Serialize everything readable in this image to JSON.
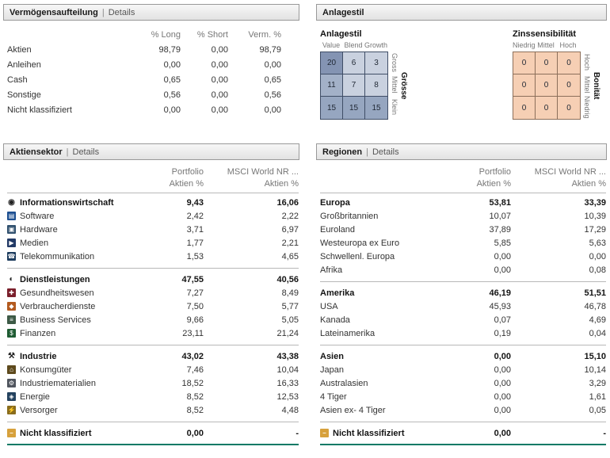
{
  "theme": {
    "accent": "#0a7a66",
    "panel_border": "#999999",
    "muted_text": "#777777",
    "text": "#333333",
    "header_bg_top": "#f7f7f7",
    "header_bg_bottom": "#e2e2e2"
  },
  "ui": {
    "separator": "|"
  },
  "allocation": {
    "title": "Vermögensaufteilung",
    "details_label": "Details",
    "columns": [
      "% Long",
      "% Short",
      "Verm. %"
    ],
    "rows": [
      {
        "label": "Aktien",
        "values": [
          "98,79",
          "0,00",
          "98,79"
        ]
      },
      {
        "label": "Anleihen",
        "values": [
          "0,00",
          "0,00",
          "0,00"
        ]
      },
      {
        "label": "Cash",
        "values": [
          "0,65",
          "0,00",
          "0,65"
        ]
      },
      {
        "label": "Sonstige",
        "values": [
          "0,56",
          "0,00",
          "0,56"
        ]
      },
      {
        "label": "Nicht klassifiziert",
        "values": [
          "0,00",
          "0,00",
          "0,00"
        ]
      }
    ]
  },
  "style_panel": {
    "title": "Anlagestil",
    "equity_box": {
      "title": "Anlagestil",
      "top_labels": [
        "Value",
        "Blend",
        "Growth"
      ],
      "row_labels": [
        "Gross",
        "Mittel",
        "Klein"
      ],
      "axis_title": "Grösse",
      "cells": [
        [
          20,
          6,
          3
        ],
        [
          11,
          7,
          8
        ],
        [
          15,
          15,
          15
        ]
      ],
      "border_color": "#3f4d66",
      "cell_colors": [
        [
          "#8494b3",
          "#c9d1df",
          "#c9d1df"
        ],
        [
          "#a3b1c8",
          "#c9d1df",
          "#c9d1df"
        ],
        [
          "#96a6c0",
          "#96a6c0",
          "#96a6c0"
        ]
      ]
    },
    "bond_box": {
      "title": "Zinssensibilität",
      "top_labels": [
        "Niedrig",
        "Mittel",
        "Hoch"
      ],
      "row_labels": [
        "Hoch",
        "Mittel",
        "Niedrig"
      ],
      "axis_title": "Bonität",
      "cells": [
        [
          0,
          0,
          0
        ],
        [
          0,
          0,
          0
        ],
        [
          0,
          0,
          0
        ]
      ],
      "border_color": "#8c6f5a",
      "cell_colors": [
        [
          "#f6cfb4",
          "#f6cfb4",
          "#f6cfb4"
        ],
        [
          "#f6cfb4",
          "#f6cfb4",
          "#f6cfb4"
        ],
        [
          "#f6cfb4",
          "#f6cfb4",
          "#f6cfb4"
        ]
      ]
    }
  },
  "sectors": {
    "title": "Aktiensektor",
    "details_label": "Details",
    "col_headers": [
      "Portfolio",
      "MSCI World NR ..."
    ],
    "sub_headers": [
      "Aktien %",
      "Aktien %"
    ],
    "groups": [
      {
        "label": "Informationswirtschaft",
        "icon": {
          "name": "information-economy-sector-icon",
          "glyph": "◉",
          "fg": "#222222"
        },
        "values": [
          "9,43",
          "16,06"
        ],
        "rows": [
          {
            "label": "Software",
            "icon": {
              "name": "software-icon",
              "glyph": "▤",
              "bg": "#1d4f91"
            },
            "values": [
              "2,42",
              "2,22"
            ]
          },
          {
            "label": "Hardware",
            "icon": {
              "name": "hardware-icon",
              "glyph": "▣",
              "bg": "#30506e"
            },
            "values": [
              "3,71",
              "6,97"
            ]
          },
          {
            "label": "Medien",
            "icon": {
              "name": "media-icon",
              "glyph": "▶",
              "bg": "#223a66"
            },
            "values": [
              "1,77",
              "2,21"
            ]
          },
          {
            "label": "Telekommunikation",
            "icon": {
              "name": "telecom-icon",
              "glyph": "☎",
              "bg": "#1d3c5e"
            },
            "values": [
              "1,53",
              "4,65"
            ]
          }
        ]
      },
      {
        "label": "Dienstleistungen",
        "icon": {
          "name": "services-sector-icon",
          "glyph": "◐",
          "fg": "#222222"
        },
        "values": [
          "47,55",
          "40,56"
        ],
        "rows": [
          {
            "label": "Gesundheitswesen",
            "icon": {
              "name": "healthcare-icon",
              "glyph": "✚",
              "bg": "#7a1f2b"
            },
            "values": [
              "7,27",
              "8,49"
            ]
          },
          {
            "label": "Verbraucherdienste",
            "icon": {
              "name": "consumer-services-icon",
              "glyph": "◆",
              "bg": "#b35a1f"
            },
            "values": [
              "7,50",
              "5,77"
            ]
          },
          {
            "label": "Business Services",
            "icon": {
              "name": "business-services-icon",
              "glyph": "≡",
              "bg": "#3d5a46"
            },
            "values": [
              "9,66",
              "5,05"
            ]
          },
          {
            "label": "Finanzen",
            "icon": {
              "name": "financial-icon",
              "glyph": "$",
              "bg": "#1f5c33"
            },
            "values": [
              "23,11",
              "21,24"
            ]
          }
        ]
      },
      {
        "label": "Industrie",
        "icon": {
          "name": "industry-sector-icon",
          "glyph": "⚒",
          "fg": "#222222"
        },
        "values": [
          "43,02",
          "43,38"
        ],
        "rows": [
          {
            "label": "Konsumgüter",
            "icon": {
              "name": "consumer-goods-icon",
              "glyph": "⌂",
              "bg": "#5e4a1d"
            },
            "values": [
              "7,46",
              "10,04"
            ]
          },
          {
            "label": "Industriematerialien",
            "icon": {
              "name": "industrial-materials-icon",
              "glyph": "⚙",
              "bg": "#50555e"
            },
            "values": [
              "18,52",
              "16,33"
            ]
          },
          {
            "label": "Energie",
            "icon": {
              "name": "energy-icon",
              "glyph": "◈",
              "bg": "#24425f"
            },
            "values": [
              "8,52",
              "12,53"
            ]
          },
          {
            "label": "Versorger",
            "icon": {
              "name": "utilities-icon",
              "glyph": "⚡",
              "bg": "#8a6d1d"
            },
            "values": [
              "8,52",
              "4,48"
            ]
          }
        ]
      },
      {
        "label": "Nicht klassifiziert",
        "icon": {
          "name": "not-classified-icon",
          "glyph": "–",
          "bg": "#d7a13c"
        },
        "values": [
          "0,00",
          "-"
        ],
        "rows": []
      }
    ]
  },
  "regions": {
    "title": "Regionen",
    "details_label": "Details",
    "col_headers": [
      "Portfolio",
      "MSCI World NR ..."
    ],
    "sub_headers": [
      "Aktien %",
      "Aktien %"
    ],
    "groups": [
      {
        "label": "Europa",
        "values": [
          "53,81",
          "33,39"
        ],
        "rows": [
          {
            "label": "Großbritannien",
            "values": [
              "10,07",
              "10,39"
            ]
          },
          {
            "label": "Euroland",
            "values": [
              "37,89",
              "17,29"
            ]
          },
          {
            "label": "Westeuropa ex Euro",
            "values": [
              "5,85",
              "5,63"
            ]
          },
          {
            "label": "Schwellenl. Europa",
            "values": [
              "0,00",
              "0,00"
            ]
          },
          {
            "label": "Afrika",
            "values": [
              "0,00",
              "0,08"
            ]
          }
        ]
      },
      {
        "label": "Amerika",
        "values": [
          "46,19",
          "51,51"
        ],
        "rows": [
          {
            "label": "USA",
            "values": [
              "45,93",
              "46,78"
            ]
          },
          {
            "label": "Kanada",
            "values": [
              "0,07",
              "4,69"
            ]
          },
          {
            "label": "Lateinamerika",
            "values": [
              "0,19",
              "0,04"
            ]
          }
        ]
      },
      {
        "label": "Asien",
        "values": [
          "0,00",
          "15,10"
        ],
        "rows": [
          {
            "label": "Japan",
            "values": [
              "0,00",
              "10,14"
            ]
          },
          {
            "label": "Australasien",
            "values": [
              "0,00",
              "3,29"
            ]
          },
          {
            "label": "4 Tiger",
            "values": [
              "0,00",
              "1,61"
            ]
          },
          {
            "label": "Asien ex- 4 Tiger",
            "values": [
              "0,00",
              "0,05"
            ]
          }
        ]
      },
      {
        "label": "Nicht klassifiziert",
        "icon": {
          "name": "not-classified-icon",
          "glyph": "–",
          "bg": "#d7a13c"
        },
        "values": [
          "0,00",
          "-"
        ],
        "rows": []
      }
    ]
  }
}
